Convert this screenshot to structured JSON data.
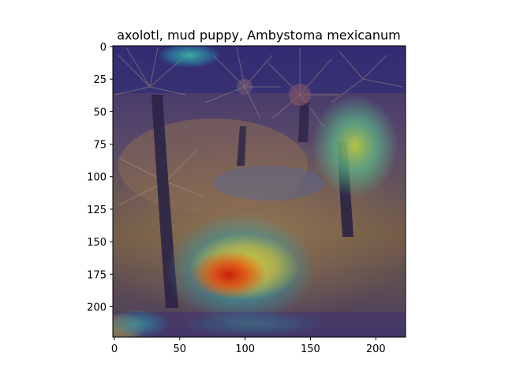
{
  "figure": {
    "title": "axolotl, mud puppy, Ambystoma mexicanum"
  },
  "image": {
    "description_kind": "grad-cam heatmap overlaid on photo",
    "heatmap_colormap": "jet",
    "palette": {
      "sand": "#8a6a4a",
      "sand_dark": "#4e3a2c",
      "trunk": "#2b2346",
      "overlay_low": "#3a2a8a",
      "overlay_cyan": "#38c2b0",
      "overlay_yellow": "#f2d23a",
      "overlay_red": "#d61e10"
    }
  },
  "axes": {
    "x_range": [
      0,
      224
    ],
    "y_range": [
      0,
      224
    ],
    "x_ticks": [
      "0",
      "50",
      "100",
      "150",
      "200"
    ],
    "y_ticks": [
      "0",
      "25",
      "50",
      "75",
      "100",
      "125",
      "150",
      "175",
      "200"
    ]
  }
}
